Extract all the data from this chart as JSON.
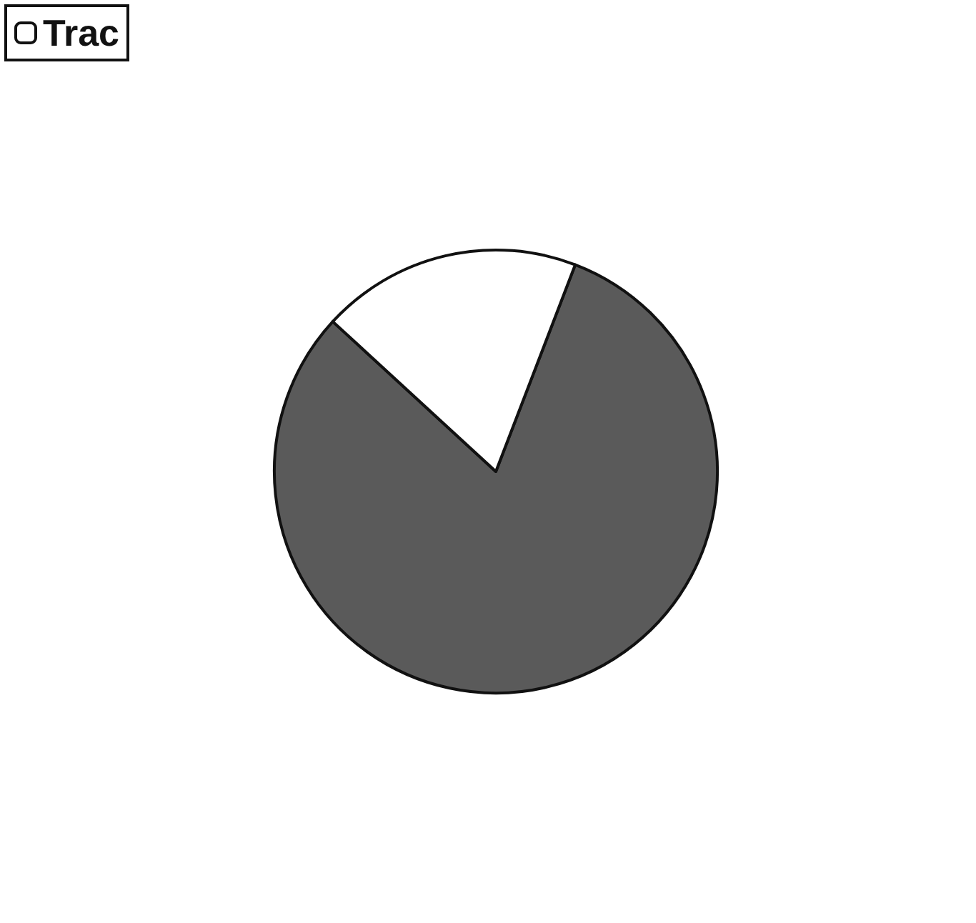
{
  "chart_data": {
    "type": "pie",
    "categories": [
      null,
      "Trac"
    ],
    "values": [
      81,
      19
    ],
    "colors": [
      "#5a5a5a",
      "#ffffff"
    ],
    "legend": "top left"
  }
}
